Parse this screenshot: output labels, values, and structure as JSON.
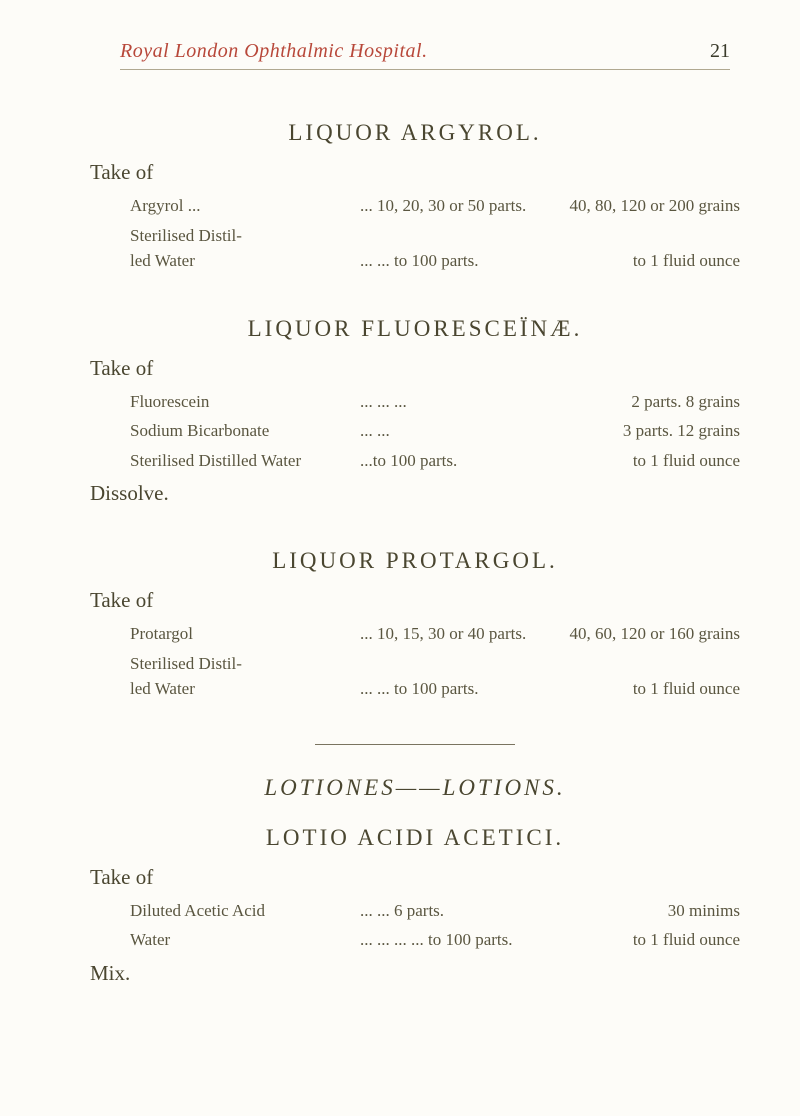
{
  "header": {
    "running_title": "Royal London Ophthalmic Hospital.",
    "page_number": "21"
  },
  "sections": {
    "argyrol": {
      "title": "LIQUOR ARGYROL.",
      "take_of": "Take of",
      "lines": {
        "l1_name": "Argyrol ...",
        "l1_mid": "... 10, 20, 30 or 50 parts.",
        "l1_right": "40, 80, 120 or 200 grains",
        "l2_name": "Sterilised Distil-\n    led Water",
        "l2_mid": "...   ... to 100 parts.",
        "l2_right": "to 1 fluid ounce"
      }
    },
    "fluorescein": {
      "title": "LIQUOR FLUORESCEÏNÆ.",
      "take_of": "Take of",
      "dissolve": "Dissolve.",
      "lines": {
        "l1_name": "Fluorescein",
        "l1_dots": "...   ...   ...",
        "l1_right": "2 parts.    8 grains",
        "l2_name": "Sodium Bicarbonate",
        "l2_dots": "...   ...",
        "l2_right": "3 parts.   12 grains",
        "l3_name": "Sterilised Distilled Water",
        "l3_dots": "...to 100 parts.",
        "l3_right": "to 1 fluid ounce"
      }
    },
    "protargol": {
      "title": "LIQUOR PROTARGOL.",
      "take_of": "Take of",
      "lines": {
        "l1_name": "Protargol",
        "l1_mid": "... 10, 15, 30 or 40 parts.",
        "l1_right": "40, 60, 120 or 160 grains",
        "l2_name": "Sterilised Distil-\n    led Water",
        "l2_mid": "...   ... to 100 parts.",
        "l2_right": "to 1 fluid ounce"
      }
    },
    "lotiones": {
      "heading": "LOTIONES——LOTIONS.",
      "title": "LOTIO ACIDI ACETICI.",
      "take_of": "Take of",
      "mix": "Mix.",
      "lines": {
        "l1_name": "Diluted Acetic Acid",
        "l1_mid": "...   ...         6 parts.",
        "l1_right": "30 minims",
        "l2_name": "Water",
        "l2_mid": "...   ...   ...   ... to 100 parts.",
        "l2_right": "to 1 fluid ounce"
      }
    }
  }
}
